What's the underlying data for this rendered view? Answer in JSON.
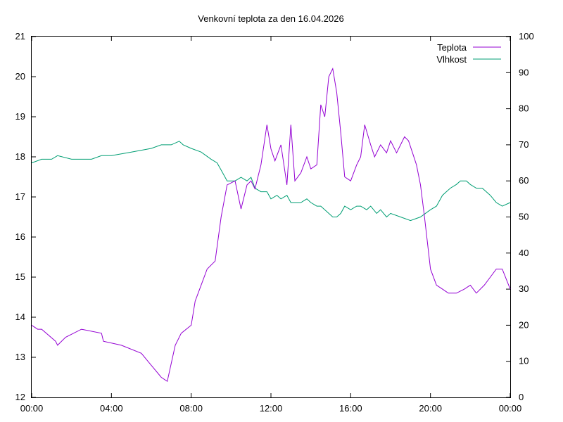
{
  "chart_data": {
    "type": "line",
    "title": "Venkovní teplota za den 16.04.2026",
    "x_range": [
      "00:00",
      "24:00"
    ],
    "x_ticks": [
      "00:00",
      "04:00",
      "08:00",
      "12:00",
      "16:00",
      "20:00",
      "00:00"
    ],
    "y_left": {
      "range": [
        12,
        21
      ],
      "ticks": [
        "12",
        "13",
        "14",
        "15",
        "16",
        "17",
        "18",
        "19",
        "20",
        "21"
      ]
    },
    "y_right": {
      "range": [
        0,
        100
      ],
      "ticks": [
        "0",
        "10",
        "20",
        "30",
        "40",
        "50",
        "60",
        "70",
        "80",
        "90",
        "100"
      ]
    },
    "grid": false,
    "legend_position": "top-right",
    "series": [
      {
        "name": "Teplota",
        "axis": "left",
        "color": "#9400d3",
        "x": [
          0,
          0.3,
          0.5,
          1.2,
          1.3,
          1.7,
          2.5,
          3.5,
          3.6,
          4.5,
          5.5,
          6.0,
          6.5,
          6.8,
          7.2,
          7.5,
          8.0,
          8.2,
          8.5,
          8.8,
          9.2,
          9.5,
          9.8,
          10.2,
          10.5,
          10.8,
          11.0,
          11.2,
          11.5,
          11.8,
          12.0,
          12.2,
          12.5,
          12.8,
          13.0,
          13.2,
          13.5,
          13.8,
          14.0,
          14.3,
          14.5,
          14.7,
          14.9,
          15.1,
          15.3,
          15.5,
          15.7,
          16.0,
          16.3,
          16.5,
          16.7,
          17.0,
          17.2,
          17.5,
          17.8,
          18.0,
          18.3,
          18.5,
          18.7,
          18.9,
          19.1,
          19.3,
          19.5,
          19.7,
          20.0,
          20.3,
          20.6,
          20.9,
          21.3,
          21.7,
          22.0,
          22.3,
          22.7,
          23.0,
          23.3,
          23.6,
          24.0
        ],
        "values": [
          13.8,
          13.7,
          13.7,
          13.4,
          13.3,
          13.5,
          13.7,
          13.6,
          13.4,
          13.3,
          13.1,
          12.8,
          12.5,
          12.4,
          13.3,
          13.6,
          13.8,
          14.4,
          14.8,
          15.2,
          15.4,
          16.5,
          17.3,
          17.4,
          16.7,
          17.3,
          17.4,
          17.2,
          17.8,
          18.8,
          18.2,
          17.9,
          18.3,
          17.3,
          18.8,
          17.4,
          17.6,
          18.0,
          17.7,
          17.8,
          19.3,
          19.0,
          20.0,
          20.2,
          19.6,
          18.6,
          17.5,
          17.4,
          17.8,
          18.0,
          18.8,
          18.3,
          18.0,
          18.3,
          18.1,
          18.4,
          18.1,
          18.3,
          18.5,
          18.4,
          18.1,
          17.8,
          17.3,
          16.5,
          15.2,
          14.8,
          14.7,
          14.6,
          14.6,
          14.7,
          14.8,
          14.6,
          14.8,
          15.0,
          15.2,
          15.2,
          14.7
        ]
      },
      {
        "name": "Vlhkost",
        "axis": "right",
        "color": "#009e73",
        "x": [
          0,
          0.5,
          1.0,
          1.3,
          2.0,
          3.0,
          3.5,
          4.0,
          5.0,
          6.0,
          6.5,
          7.0,
          7.4,
          7.6,
          8.0,
          8.5,
          9.0,
          9.3,
          9.5,
          9.8,
          10.2,
          10.5,
          10.8,
          11.0,
          11.2,
          11.5,
          11.8,
          12.0,
          12.3,
          12.5,
          12.8,
          13.0,
          13.3,
          13.5,
          13.8,
          14.0,
          14.3,
          14.5,
          14.7,
          14.9,
          15.1,
          15.3,
          15.5,
          15.7,
          16.0,
          16.3,
          16.5,
          16.8,
          17.0,
          17.3,
          17.5,
          17.8,
          18.0,
          18.5,
          19.0,
          19.5,
          20.0,
          20.3,
          20.6,
          21.0,
          21.3,
          21.5,
          21.8,
          22.0,
          22.3,
          22.6,
          23.0,
          23.3,
          23.6,
          24.0
        ],
        "values": [
          65,
          66,
          66,
          67,
          66,
          66,
          67,
          67,
          68,
          69,
          70,
          70,
          71,
          70,
          69,
          68,
          66,
          65,
          63,
          60,
          60,
          61,
          60,
          61,
          58,
          57,
          57,
          55,
          56,
          55,
          56,
          54,
          54,
          54,
          55,
          54,
          53,
          53,
          52,
          51,
          50,
          50,
          51,
          53,
          52,
          53,
          53,
          52,
          53,
          51,
          52,
          50,
          51,
          50,
          49,
          50,
          52,
          53,
          56,
          58,
          59,
          60,
          60,
          59,
          58,
          58,
          56,
          54,
          53,
          54
        ]
      }
    ]
  }
}
